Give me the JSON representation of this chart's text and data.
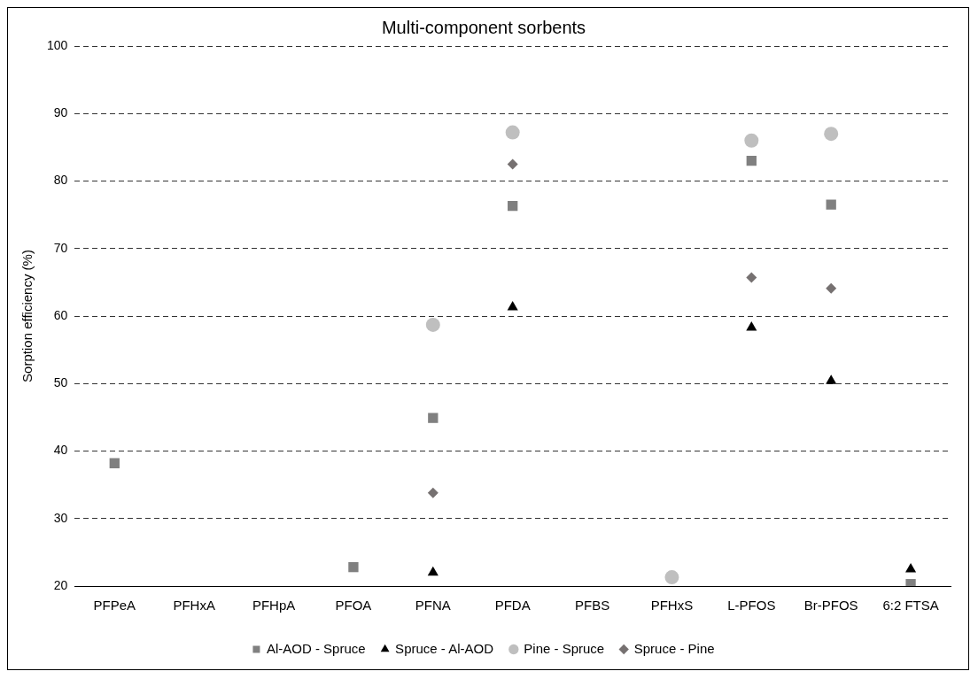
{
  "chart_data": {
    "type": "scatter",
    "title": "Multi-component sorbents",
    "ylabel": "Sorption efficiency (%)",
    "categories": [
      "PFPeA",
      "PFHxA",
      "PFHpA",
      "PFOA",
      "PFNA",
      "PFDA",
      "PFBS",
      "PFHxS",
      "L-PFOS",
      "Br-PFOS",
      "6:2 FTSA"
    ],
    "series": [
      {
        "name": "Al-AOD - Spruce",
        "color": "#808080",
        "marker": "square",
        "values": [
          38.2,
          null,
          null,
          22.8,
          44.9,
          76.3,
          null,
          null,
          83,
          76.5,
          20.3
        ]
      },
      {
        "name": "Spruce - Al-AOD",
        "color": "#000000",
        "marker": "triangle",
        "values": [
          null,
          null,
          null,
          null,
          22,
          61.3,
          null,
          null,
          58.3,
          50.4,
          22.5
        ]
      },
      {
        "name": "Pine - Spruce",
        "color": "#bfbfbf",
        "marker": "circle",
        "values": [
          null,
          null,
          null,
          null,
          58.7,
          87.2,
          null,
          21.3,
          86,
          87,
          null
        ]
      },
      {
        "name": "Spruce - Pine",
        "color": "#767171",
        "marker": "diamond",
        "values": [
          null,
          null,
          null,
          null,
          33.8,
          82.5,
          null,
          null,
          65.7,
          64.1,
          null
        ]
      }
    ],
    "ylim": [
      20,
      100
    ],
    "yticks": [
      20,
      30,
      40,
      50,
      60,
      70,
      80,
      90,
      100
    ],
    "grid": "y",
    "legend": "bottom"
  }
}
